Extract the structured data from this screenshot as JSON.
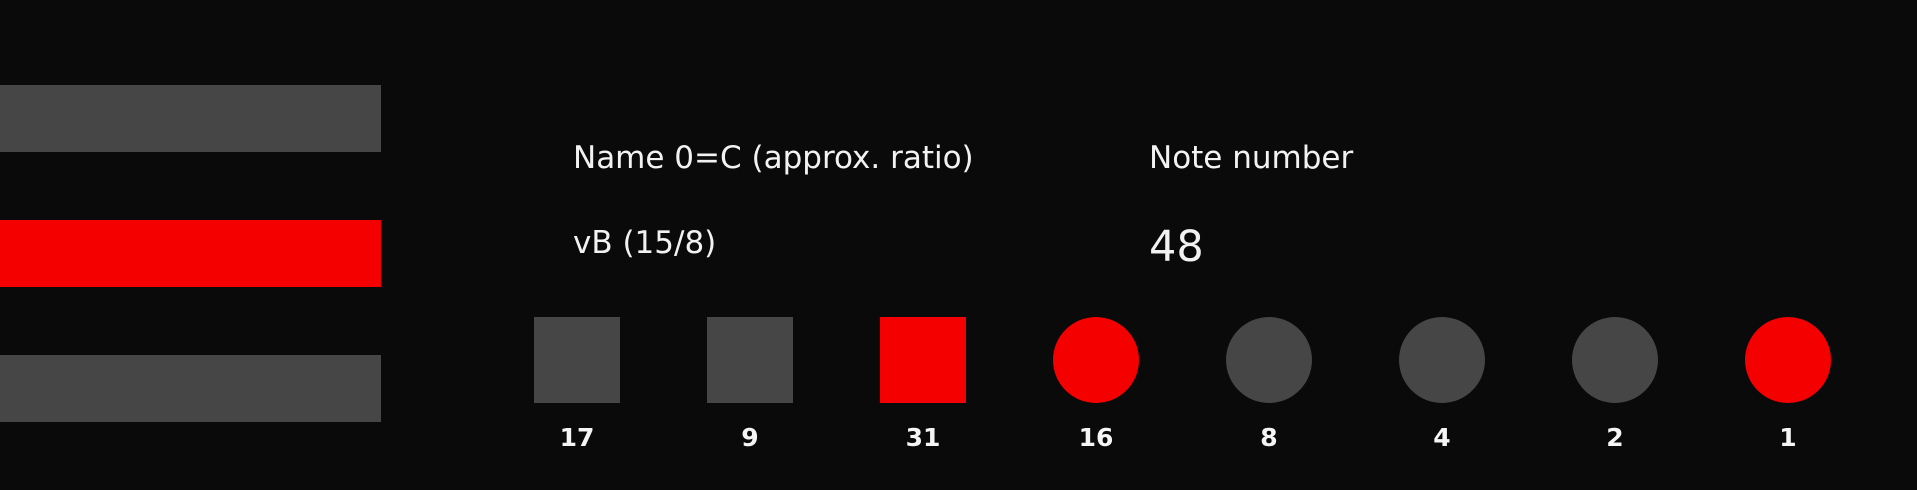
{
  "colors": {
    "background": "#0a0a0a",
    "inactive": "#464646",
    "active": "#f50000",
    "text": "#f2f2f2"
  },
  "bars": [
    {
      "name": "bar-top",
      "state": "inactive"
    },
    {
      "name": "bar-middle",
      "state": "active"
    },
    {
      "name": "bar-bottom",
      "state": "inactive"
    }
  ],
  "info": {
    "name_label": "Name 0=C (approx. ratio)",
    "name_value": "vB (15/8)",
    "note_label": "Note number",
    "note_value": "48"
  },
  "buttons": [
    {
      "label": "17",
      "shape": "square",
      "active": false
    },
    {
      "label": "9",
      "shape": "square",
      "active": false
    },
    {
      "label": "31",
      "shape": "square",
      "active": true
    },
    {
      "label": "16",
      "shape": "circle",
      "active": true
    },
    {
      "label": "8",
      "shape": "circle",
      "active": false
    },
    {
      "label": "4",
      "shape": "circle",
      "active": false
    },
    {
      "label": "2",
      "shape": "circle",
      "active": false
    },
    {
      "label": "1",
      "shape": "circle",
      "active": true
    }
  ]
}
